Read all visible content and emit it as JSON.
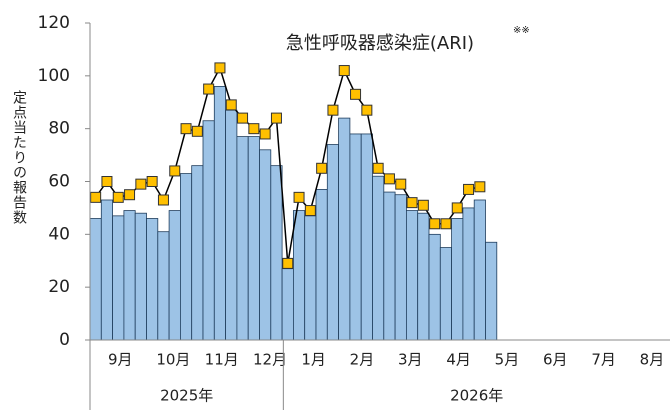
{
  "chart_data": {
    "type": "combo",
    "title": "急性呼吸器感染症(ARI)",
    "title_note": "※※",
    "y_label": "定点当たりの報告数",
    "months": [
      "9月",
      "10月",
      "11月",
      "12月",
      "1月",
      "2月",
      "3月",
      "4月",
      "5月",
      "6月",
      "7月",
      "8月"
    ],
    "years": [
      "2025年",
      "2026年"
    ],
    "ylim": [
      0,
      120
    ],
    "yticks": [
      0,
      20,
      40,
      60,
      80,
      100,
      120
    ],
    "series": [
      {
        "type": "bar",
        "color": "#9dc3e6",
        "values": [
          46,
          53,
          47,
          49,
          48,
          46,
          41,
          49,
          63,
          66,
          83,
          96,
          87,
          77,
          77,
          72,
          66,
          27,
          49,
          47,
          57,
          74,
          84,
          78,
          78,
          62,
          56,
          55,
          49,
          48,
          40,
          35,
          46,
          50,
          53,
          37
        ]
      },
      {
        "type": "line",
        "color": "#ffc000",
        "values": [
          54,
          60,
          54,
          55,
          59,
          60,
          53,
          64,
          80,
          79,
          95,
          103,
          89,
          84,
          80,
          78,
          84,
          29,
          54,
          49,
          65,
          87,
          102,
          93,
          87,
          65,
          61,
          59,
          52,
          51,
          44,
          44,
          50,
          57,
          58,
          null
        ]
      }
    ]
  }
}
